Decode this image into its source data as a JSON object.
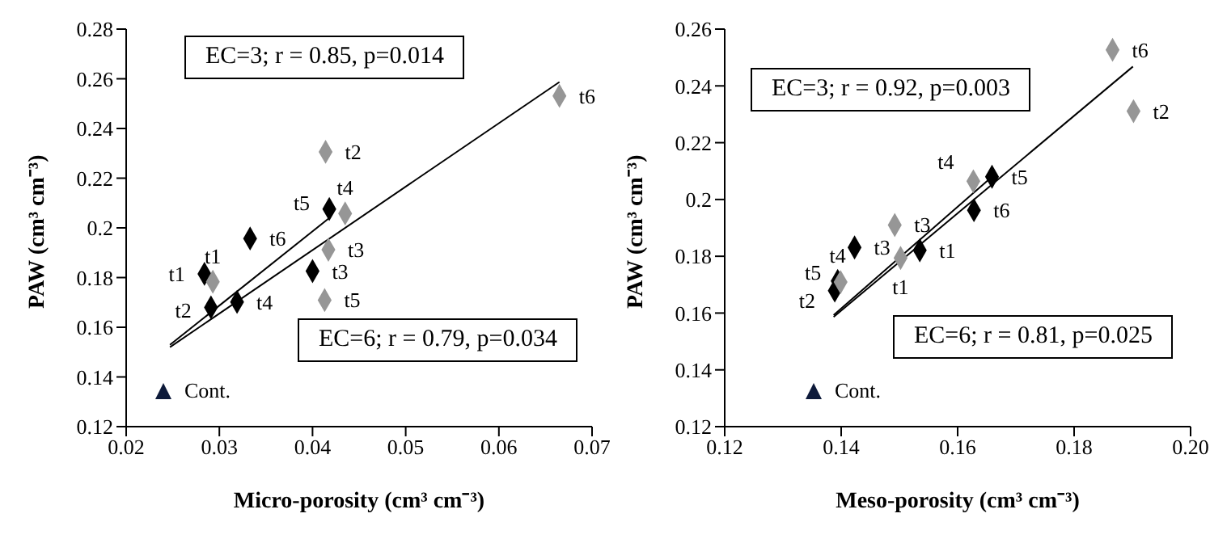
{
  "chart_data": [
    {
      "type": "scatter",
      "xlabel": "Micro-porosity (cm³ cm⁻³)",
      "ylabel": "PAW (cm³ cm⁻³)",
      "xlim": [
        0.02,
        0.07
      ],
      "xticks": [
        0.02,
        0.03,
        0.04,
        0.05,
        0.06,
        0.07
      ],
      "ylim": [
        0.12,
        0.28
      ],
      "yticks": [
        0.12,
        0.14,
        0.16,
        0.18,
        {
          "value": 0.2,
          "label": "0.2"
        },
        0.22,
        0.24,
        0.26,
        0.28
      ],
      "marker": "diamond",
      "grid": false,
      "series": [
        {
          "color": "#000000",
          "x": [
            0.0284,
            0.0291,
            0.04,
            0.0319,
            0.0418,
            0.0333
          ],
          "values": [
            0.1815,
            0.168,
            0.1826,
            0.1702,
            0.2076,
            0.1957
          ],
          "value_labels": [
            "t1",
            "t2",
            "t3",
            "t4",
            "t5",
            "t6"
          ]
        },
        {
          "color": "#969696",
          "x": [
            0.0293,
            0.0414,
            0.0417,
            0.0435,
            0.0413,
            0.0665
          ],
          "values": [
            0.1783,
            0.2306,
            0.1912,
            0.2058,
            0.1709,
            0.2531
          ],
          "value_labels": [
            "t1",
            "t2",
            "t3",
            "t4",
            "t5",
            "t6"
          ]
        },
        {
          "type": "line",
          "marker": "none",
          "color": "#000000",
          "x": [
            0.0247,
            0.0418
          ],
          "values": [
            0.1529,
            0.204
          ]
        },
        {
          "type": "line",
          "marker": "none",
          "color": "#000000",
          "x": [
            0.0247,
            0.0665
          ],
          "values": [
            0.152,
            0.2587
          ]
        }
      ],
      "annotations": [
        "EC=3; r = 0.85, p=0.014",
        "EC=6; r = 0.79, p=0.034",
        "Cont."
      ]
    },
    {
      "type": "scatter",
      "xlabel": "Meso-porosity (cm³ cm⁻³)",
      "ylabel": "PAW (cm³ cm⁻³)",
      "xlim": [
        0.12,
        0.2
      ],
      "xticks": [
        0.12,
        0.14,
        0.16,
        0.18,
        {
          "value": 0.2,
          "label": "0.20"
        }
      ],
      "ylim": [
        0.12,
        0.26
      ],
      "yticks": [
        0.12,
        0.14,
        0.16,
        0.18,
        {
          "value": 0.2,
          "label": "0.2"
        },
        0.22,
        0.24,
        0.26
      ],
      "marker": "diamond",
      "grid": false,
      "series": [
        {
          "color": "#000000",
          "x": [
            0.1535,
            0.1389,
            0.1423,
            0.1394,
            0.1659,
            0.1628
          ],
          "values": [
            0.1821,
            0.1679,
            0.1831,
            0.1713,
            0.208,
            0.1962
          ],
          "value_labels": [
            "t1",
            "t2",
            "t3",
            "t4",
            "t5",
            "t6"
          ]
        },
        {
          "color": "#969696",
          "x": [
            0.1502,
            0.1902,
            0.1492,
            0.1627,
            0.1399,
            0.1866
          ],
          "values": [
            0.1794,
            0.2311,
            0.191,
            0.2064,
            0.1709,
            0.2527
          ],
          "value_labels": [
            "t1",
            "t2",
            "t3",
            "t4",
            "t5",
            "t6"
          ]
        },
        {
          "type": "line",
          "marker": "none",
          "color": "#000000",
          "x": [
            0.1387,
            0.1659
          ],
          "values": [
            0.1593,
            0.208
          ]
        },
        {
          "type": "line",
          "marker": "none",
          "color": "#000000",
          "x": [
            0.1387,
            0.1901
          ],
          "values": [
            0.1586,
            0.2468
          ]
        }
      ],
      "annotations": [
        "EC=3; r = 0.92, p=0.003",
        "EC=6; r = 0.81, p=0.025",
        "Cont."
      ]
    }
  ]
}
